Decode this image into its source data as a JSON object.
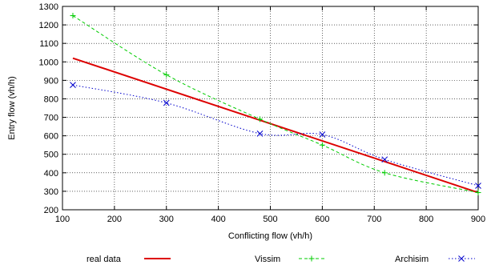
{
  "chart_data": {
    "type": "line",
    "xlabel": "Conflicting flow (vh/h)",
    "ylabel": "Entry flow (vh/h)",
    "xlim": [
      100,
      900
    ],
    "ylim": [
      200,
      1300
    ],
    "x_ticks": [
      "100",
      "200",
      "300",
      "400",
      "500",
      "600",
      "700",
      "800",
      "900"
    ],
    "y_ticks": [
      "200",
      "300",
      "400",
      "500",
      "600",
      "700",
      "800",
      "900",
      "1000",
      "1100",
      "1200",
      "1300"
    ],
    "grid": true,
    "legend_position": "bottom",
    "series": [
      {
        "name": "real data",
        "color": "#dd0000",
        "style": "solid",
        "marker": "none",
        "x": [
          120,
          900
        ],
        "y": [
          1020,
          293
        ]
      },
      {
        "name": "Vissim",
        "color": "#00cc00",
        "style": "dashed",
        "marker": "plus",
        "x": [
          120,
          300,
          480,
          600,
          720,
          900
        ],
        "y": [
          1250,
          930,
          690,
          550,
          400,
          293
        ]
      },
      {
        "name": "Archisim",
        "color": "#0000cc",
        "style": "dotted",
        "marker": "cross",
        "x": [
          120,
          300,
          480,
          600,
          720,
          900
        ],
        "y": [
          875,
          778,
          612,
          607,
          472,
          330
        ]
      }
    ]
  }
}
